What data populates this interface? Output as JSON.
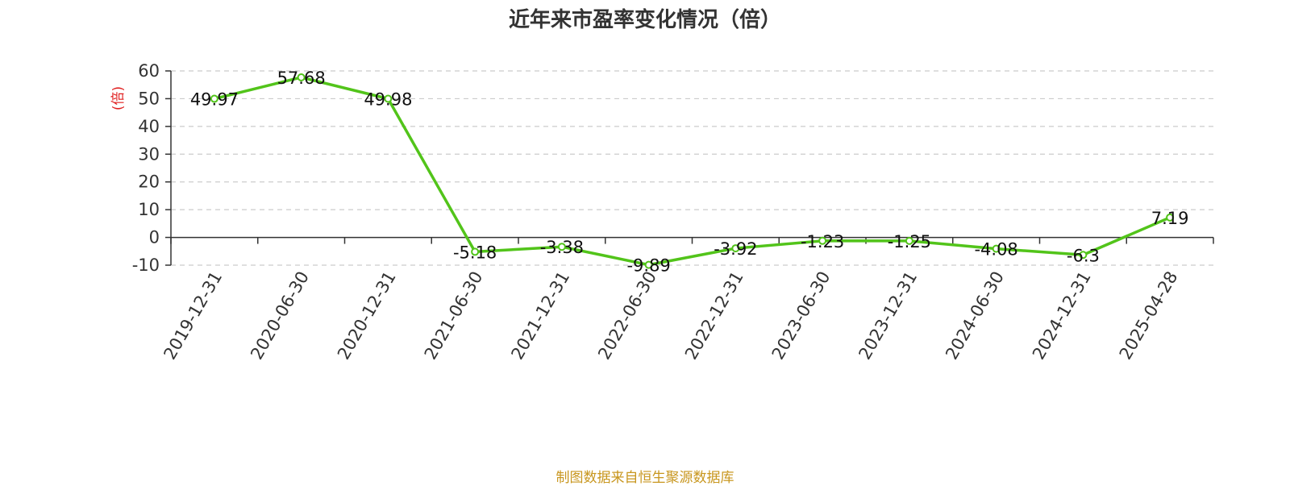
{
  "chart_data": {
    "type": "line",
    "title": "近年来市盈率变化情况（倍）",
    "ylabel": "(倍)",
    "xlabel": "",
    "categories": [
      "2019-12-31",
      "2020-06-30",
      "2020-12-31",
      "2021-06-30",
      "2021-12-31",
      "2022-06-30",
      "2022-12-31",
      "2023-06-30",
      "2023-12-31",
      "2024-06-30",
      "2024-12-31",
      "2025-04-28"
    ],
    "values": [
      49.97,
      57.68,
      49.98,
      -5.18,
      -3.38,
      -9.89,
      -3.92,
      -1.23,
      -1.25,
      -4.08,
      -6.3,
      7.19
    ],
    "data_labels": [
      "49.97",
      "57.68",
      "49.98",
      "-5.18",
      "-3.38",
      "-9.89",
      "-3.92",
      "-1.23",
      "-1.25",
      "-4.08",
      "-6.3",
      "7.19"
    ],
    "ylim": [
      -10,
      60
    ],
    "yticks": [
      -10,
      0,
      10,
      20,
      30,
      40,
      50,
      60
    ],
    "ytick_labels": [
      "-10",
      "0",
      "10",
      "20",
      "30",
      "40",
      "50",
      "60"
    ],
    "grid": true,
    "legend": "none",
    "line_color": "#52c41a",
    "ylabel_color": "#e02020"
  },
  "footer": {
    "source": "制图数据来自恒生聚源数据库"
  }
}
